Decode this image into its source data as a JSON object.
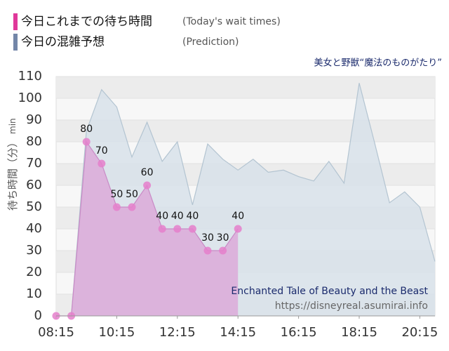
{
  "chart_data": {
    "type": "area",
    "subtitle": "美女と野獣“魔法のものがたり”",
    "ylabel": "待ち時間（分）",
    "yunit": "min",
    "watermark": [
      "Enchanted Tale of Beauty and the Beast",
      "https://disneyreal.asumirai.info"
    ],
    "x": [
      "08:15",
      "08:45",
      "09:15",
      "09:45",
      "10:15",
      "10:45",
      "11:15",
      "11:45",
      "12:15",
      "12:45",
      "13:15",
      "13:45",
      "14:15",
      "14:45",
      "15:15",
      "15:45",
      "16:15",
      "16:45",
      "17:15",
      "17:45",
      "18:15",
      "18:45",
      "19:15",
      "19:45",
      "20:15",
      "20:45"
    ],
    "xlim": [
      "08:15",
      "20:45"
    ],
    "xticks": [
      "08:15",
      "10:15",
      "12:15",
      "14:15",
      "16:15",
      "18:15",
      "20:15"
    ],
    "ylim": [
      0,
      110
    ],
    "yticks": [
      0,
      10,
      20,
      30,
      40,
      50,
      60,
      70,
      80,
      90,
      100,
      110
    ],
    "grid": true,
    "series": [
      {
        "name": "今日これまでの待ち時間",
        "name_en": "(Today's wait times)",
        "color": "#e0389a",
        "fill": "#dcaad9",
        "line": "#c98bc6",
        "marker": "#e57fcb",
        "markers": true,
        "values": [
          0,
          0,
          80,
          70,
          50,
          50,
          60,
          40,
          40,
          40,
          30,
          30,
          40,
          null,
          null,
          null,
          null,
          null,
          null,
          null,
          null,
          null,
          null,
          null,
          null,
          null
        ]
      },
      {
        "name": "今日の混雑予想",
        "name_en": "(Prediction)",
        "color": "#7386a8",
        "fill": "#d8e2ea",
        "line": "#b3c4d1",
        "markers": false,
        "values": [
          null,
          0,
          85,
          104,
          96,
          73,
          89,
          71,
          80,
          51,
          79,
          72,
          67,
          72,
          66,
          67,
          64,
          62,
          71,
          61,
          107,
          80,
          52,
          57,
          50,
          25
        ]
      }
    ]
  }
}
